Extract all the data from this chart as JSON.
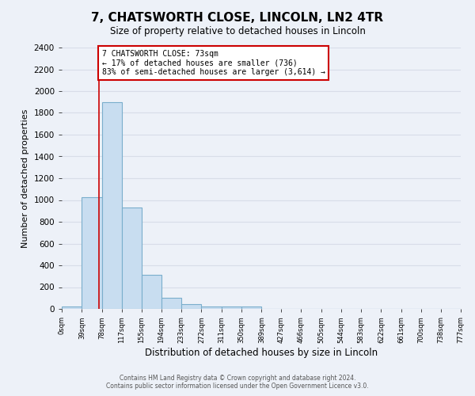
{
  "title": "7, CHATSWORTH CLOSE, LINCOLN, LN2 4TR",
  "subtitle": "Size of property relative to detached houses in Lincoln",
  "xlabel": "Distribution of detached houses by size in Lincoln",
  "ylabel": "Number of detached properties",
  "bar_color": "#c8ddf0",
  "bar_edge_color": "#7aaecc",
  "background_color": "#edf1f8",
  "grid_color": "#d8dde8",
  "bin_edges": [
    0,
    39,
    78,
    117,
    155,
    194,
    233,
    272,
    311,
    350,
    389,
    427,
    466,
    505,
    544,
    583,
    622,
    661,
    700,
    738,
    777
  ],
  "bin_labels": [
    "0sqm",
    "39sqm",
    "78sqm",
    "117sqm",
    "155sqm",
    "194sqm",
    "233sqm",
    "272sqm",
    "311sqm",
    "350sqm",
    "389sqm",
    "427sqm",
    "466sqm",
    "505sqm",
    "544sqm",
    "583sqm",
    "622sqm",
    "661sqm",
    "700sqm",
    "738sqm",
    "777sqm"
  ],
  "counts": [
    20,
    1025,
    1900,
    930,
    315,
    105,
    45,
    20,
    20,
    20,
    0,
    0,
    0,
    0,
    0,
    0,
    0,
    0,
    0,
    0
  ],
  "property_value": 73,
  "property_line_color": "#cc0000",
  "annotation_line1": "7 CHATSWORTH CLOSE: 73sqm",
  "annotation_line2": "← 17% of detached houses are smaller (736)",
  "annotation_line3": "83% of semi-detached houses are larger (3,614) →",
  "annotation_box_color": "#ffffff",
  "annotation_box_edge_color": "#cc0000",
  "ylim": [
    0,
    2400
  ],
  "yticks": [
    0,
    200,
    400,
    600,
    800,
    1000,
    1200,
    1400,
    1600,
    1800,
    2000,
    2200,
    2400
  ],
  "footer_line1": "Contains HM Land Registry data © Crown copyright and database right 2024.",
  "footer_line2": "Contains public sector information licensed under the Open Government Licence v3.0.",
  "figsize": [
    6.0,
    5.0
  ],
  "dpi": 100
}
